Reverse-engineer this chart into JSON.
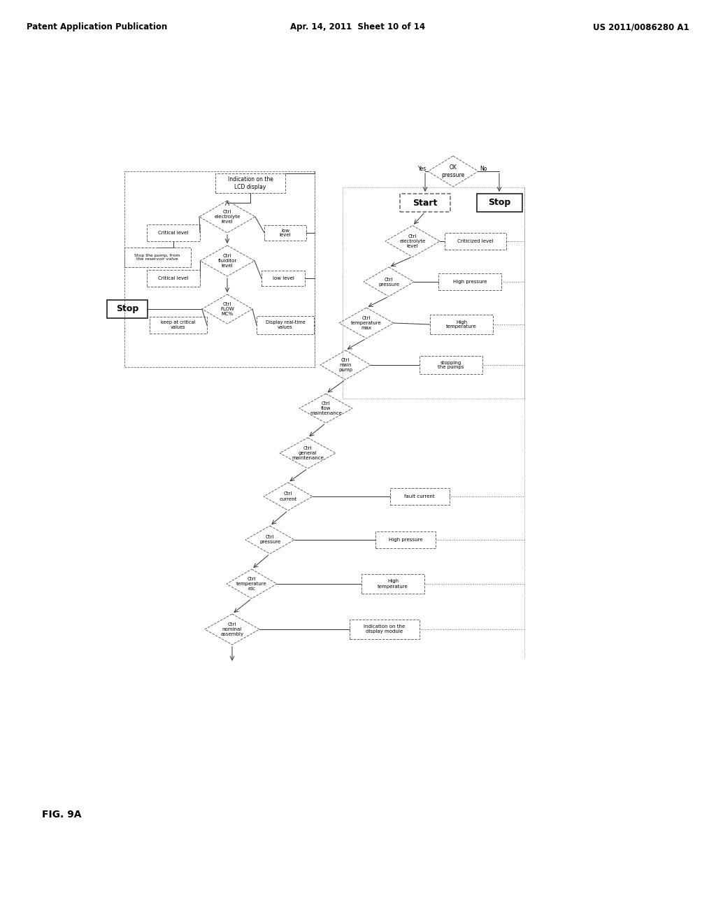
{
  "title_left": "Patent Application Publication",
  "title_center": "Apr. 14, 2011  Sheet 10 of 14",
  "title_right": "US 2011/0086280 A1",
  "fig_label": "FIG. 9A",
  "bg_color": "#ffffff",
  "text_color": "#000000",
  "lc": "#333333",
  "dc": "#666666"
}
